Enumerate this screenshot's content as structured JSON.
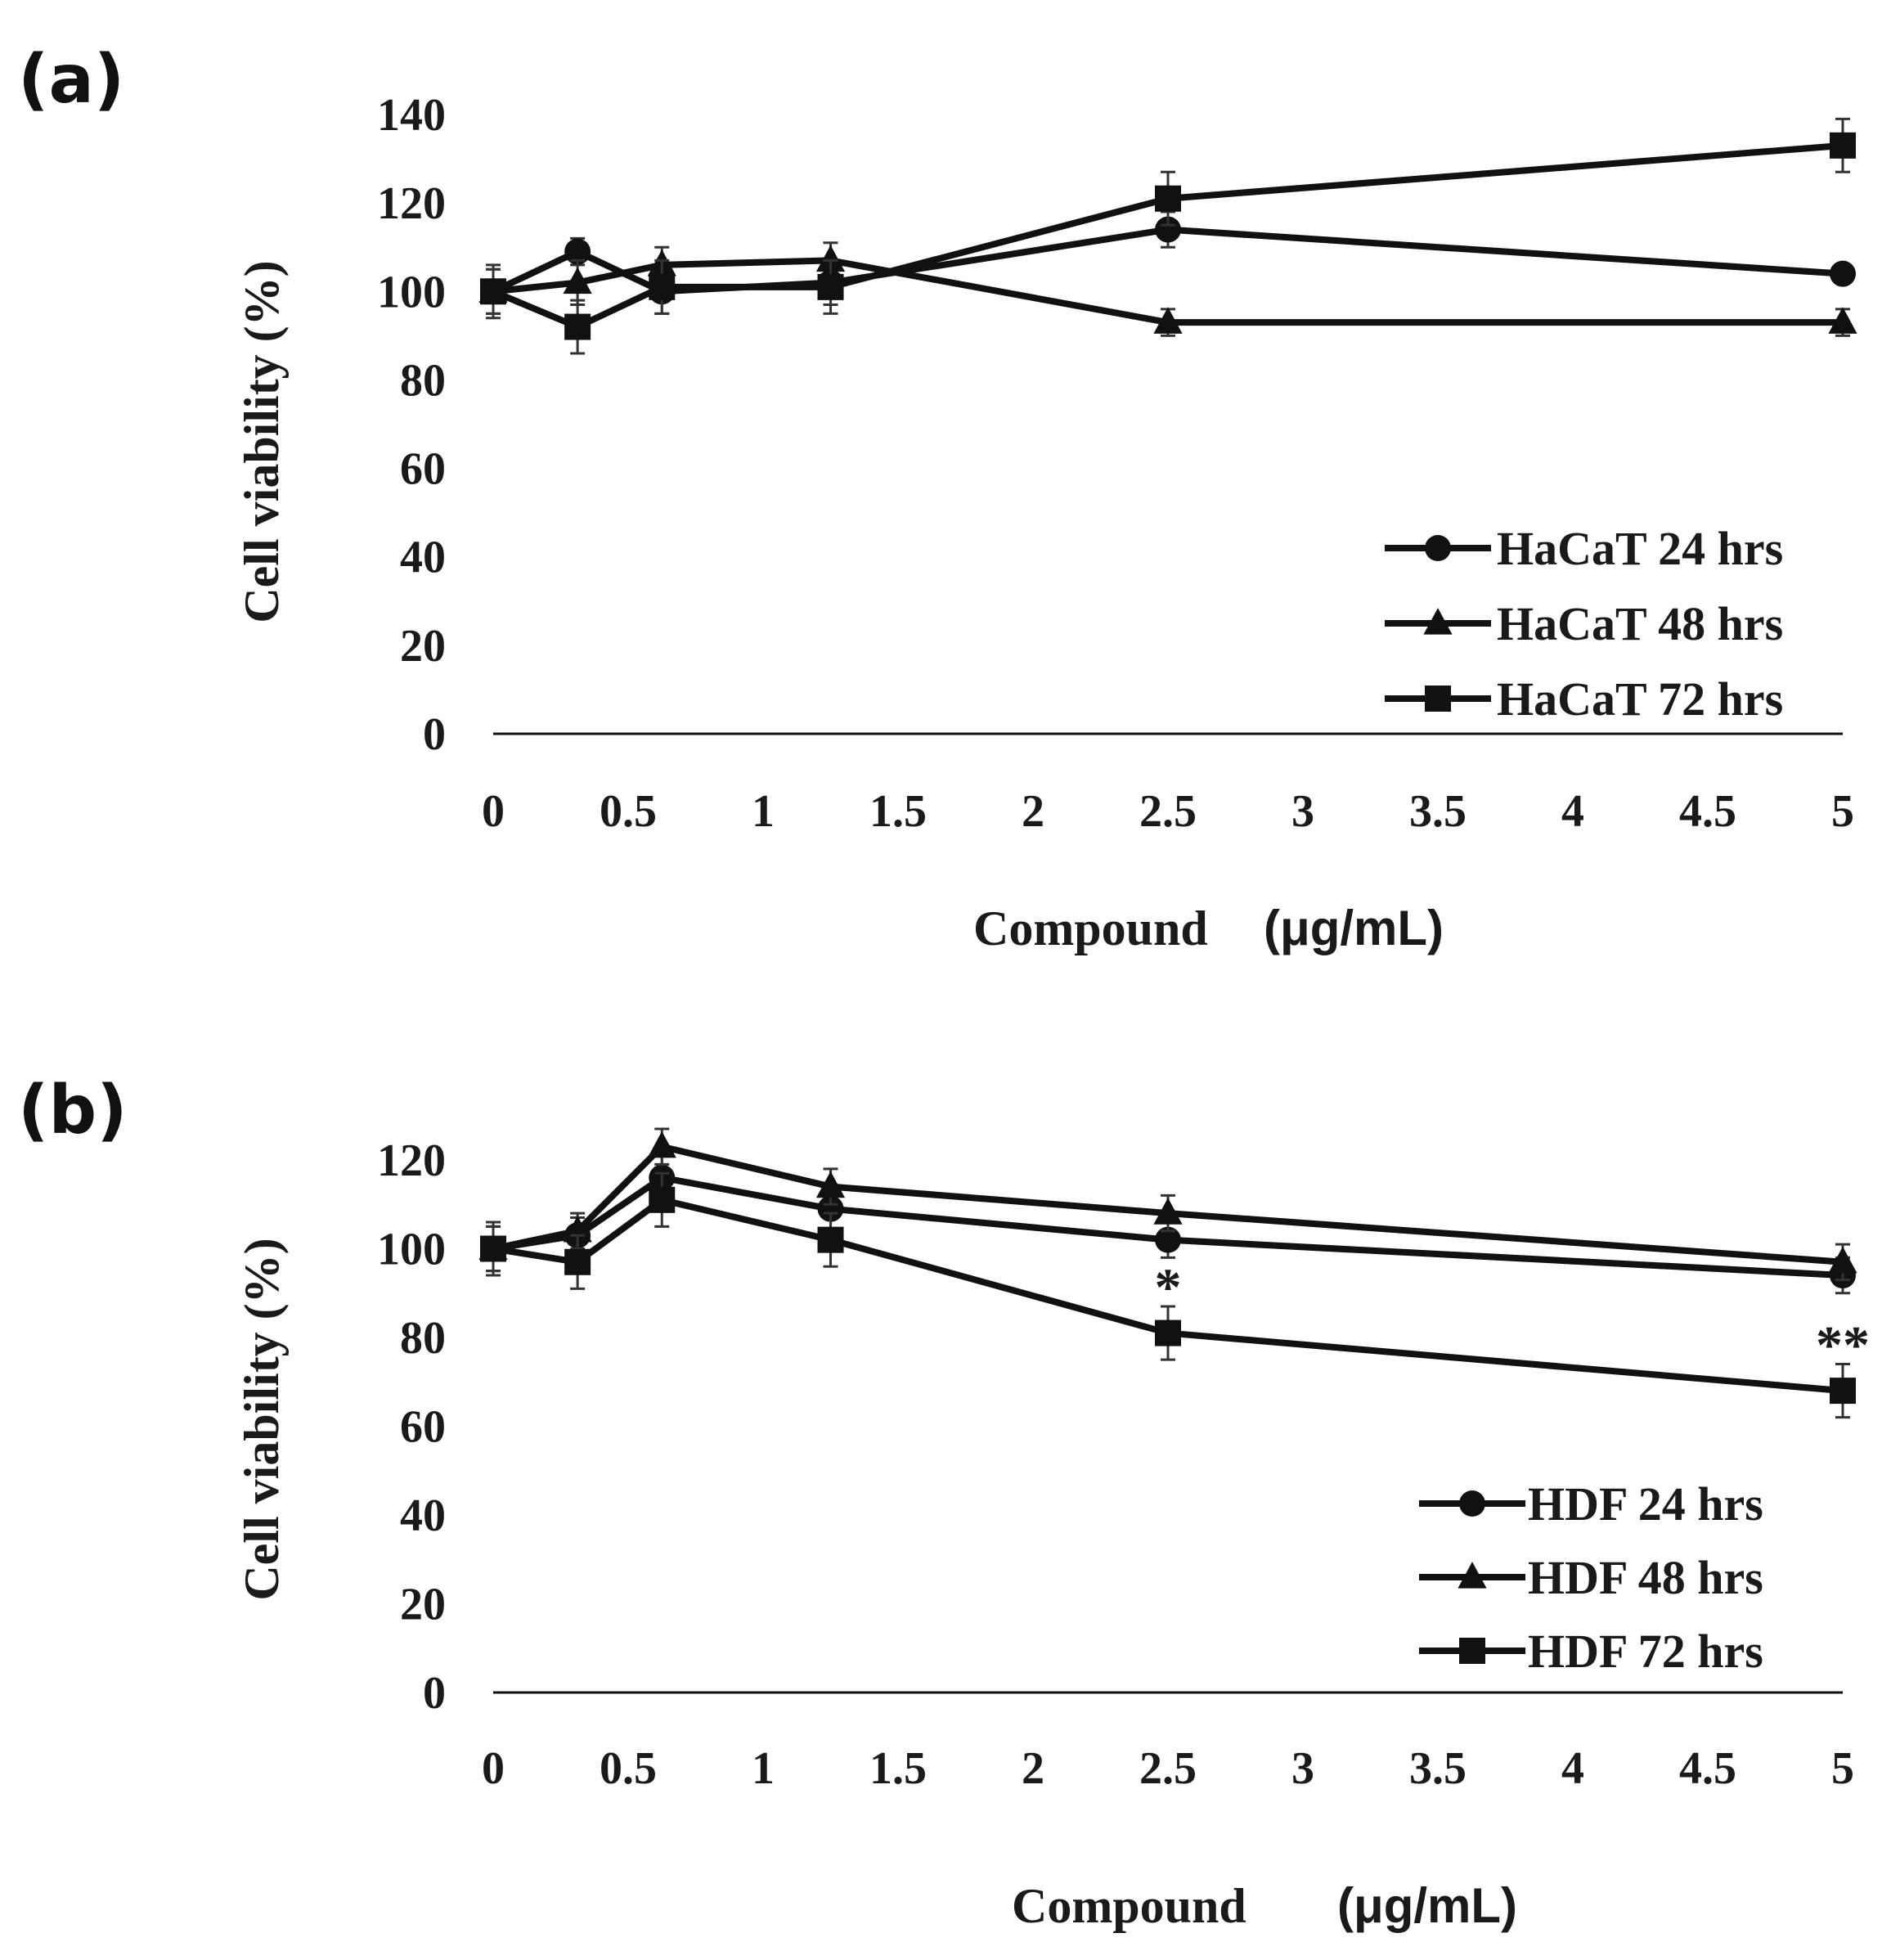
{
  "chart_data": [
    {
      "panel": "(a)",
      "type": "line",
      "xlabel": "Compound",
      "xunit": "(μg/mL)",
      "ylabel": "Cell viability (%)",
      "xlim": [
        0,
        5
      ],
      "ylim": [
        0,
        140
      ],
      "xticks": [
        "0",
        "0.5",
        "1",
        "1.5",
        "2",
        "2.5",
        "3",
        "3.5",
        "4",
        "4.5",
        "5"
      ],
      "yticks": [
        "0",
        "20",
        "40",
        "60",
        "80",
        "100",
        "120",
        "140"
      ],
      "legend_position": "right",
      "x": [
        0,
        0.3125,
        0.625,
        1.25,
        2.5,
        5
      ],
      "series": [
        {
          "name": "HaCaT 24 hrs",
          "marker": "circle",
          "values": [
            100,
            109,
            100,
            102,
            114,
            104
          ],
          "errors": [
            5,
            3,
            5,
            5,
            4,
            2
          ]
        },
        {
          "name": "HaCaT 48 hrs",
          "marker": "triangle",
          "values": [
            100,
            102,
            106,
            107,
            93,
            93
          ],
          "errors": [
            5,
            5,
            4,
            4,
            3,
            3
          ]
        },
        {
          "name": "HaCaT 72 hrs",
          "marker": "square",
          "values": [
            100,
            92,
            101,
            101,
            121,
            133
          ],
          "errors": [
            6,
            6,
            6,
            6,
            6,
            6
          ]
        }
      ],
      "annotations": []
    },
    {
      "panel": "(b)",
      "type": "line",
      "xlabel": "Compound",
      "xunit": "(μg/mL)",
      "ylabel": "Cell viability (%)",
      "xlim": [
        0,
        5
      ],
      "ylim": [
        0,
        120
      ],
      "xticks": [
        "0",
        "0.5",
        "1",
        "1.5",
        "2",
        "2.5",
        "3",
        "3.5",
        "4",
        "4.5",
        "5"
      ],
      "yticks": [
        "0",
        "20",
        "40",
        "60",
        "80",
        "100",
        "120"
      ],
      "legend_position": "bottom-right",
      "x": [
        0,
        0.3125,
        0.625,
        1.25,
        2.5,
        5
      ],
      "series": [
        {
          "name": "HDF 24 hrs",
          "marker": "circle",
          "values": [
            100,
            103,
            116,
            109,
            102,
            94
          ],
          "errors": [
            5,
            4,
            5,
            5,
            4,
            4
          ]
        },
        {
          "name": "HDF 48 hrs",
          "marker": "triangle",
          "values": [
            100,
            104,
            123,
            114,
            108,
            97
          ],
          "errors": [
            5,
            4,
            4,
            4,
            4,
            4
          ]
        },
        {
          "name": "HDF 72 hrs",
          "marker": "square",
          "values": [
            100,
            97,
            111,
            102,
            81,
            68
          ],
          "errors": [
            6,
            6,
            6,
            6,
            6,
            6
          ]
        }
      ],
      "annotations": [
        {
          "text": "*",
          "x": 2.5,
          "y": 91
        },
        {
          "text": "**",
          "x": 5,
          "y": 78
        }
      ]
    }
  ]
}
